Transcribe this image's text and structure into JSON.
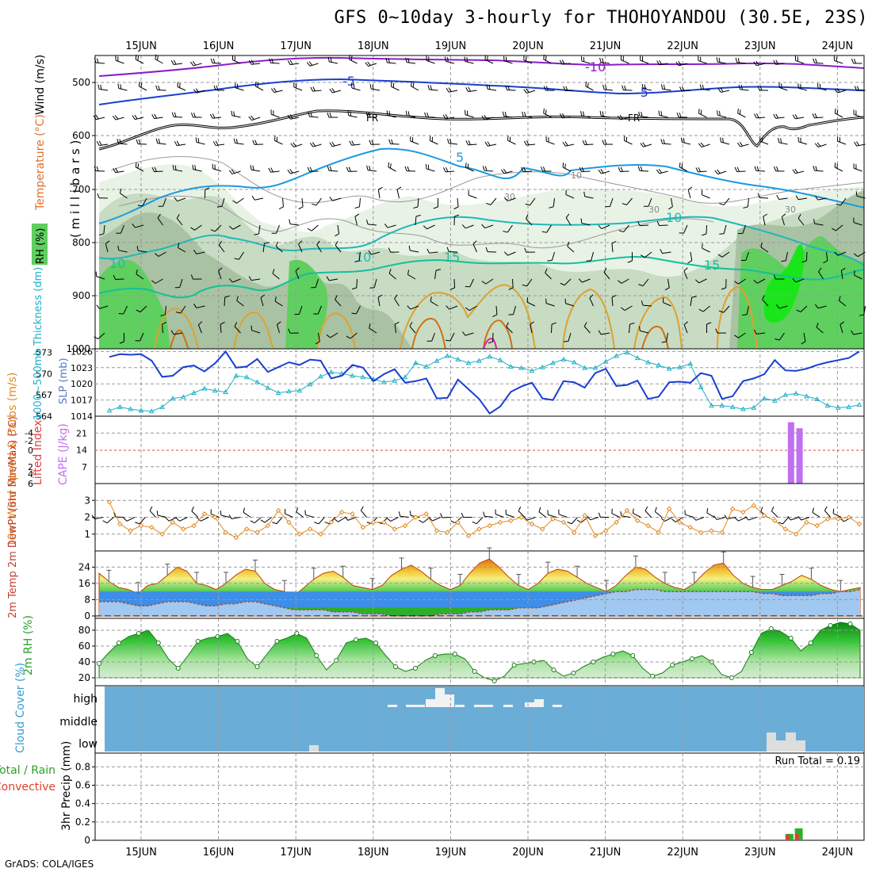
{
  "title": "GFS 0~10day 3-hourly for THOHOYANDOU (30.5E, 23S)",
  "footer": "GrADS: COLA/IGES",
  "days": [
    "15JUN",
    "16JUN",
    "17JUN",
    "18JUN",
    "19JUN",
    "20JUN",
    "21JUN",
    "22JUN",
    "23JUN",
    "24JUN"
  ],
  "colors": {
    "blue": "#1a3fd0",
    "cyan": "#20b0c8",
    "orange": "#e08a20",
    "purple": "#c070f0",
    "green": "#3dc93d",
    "sky": "#6aaed8",
    "grid": "#999999"
  },
  "chart_data": [
    {
      "type": "contour",
      "panel": "upper-air",
      "ylabel_rh": "RH (%)",
      "ylabel_t": "Temperature (°C)",
      "ylabel_w": "Wind (m/s)",
      "ylabel_p": "( m i l l i b a r s )",
      "yticks": [
        "500",
        "600",
        "700",
        "800",
        "900",
        "1000"
      ],
      "contour_labels": [
        "-10",
        "-5",
        "-5",
        "FR",
        "FR",
        "-5",
        "5",
        "10",
        "10",
        "15",
        "15",
        "30",
        "30",
        "10",
        "10",
        "30"
      ]
    },
    {
      "type": "line",
      "panel": "slp-thickness",
      "ylabel_thk": "1000~500mb Thickness (dm)",
      "ylabel_slp": "SLP (mb)",
      "thk_ticks": [
        "573",
        "570",
        "567",
        "564"
      ],
      "slp_ticks": [
        "1026",
        "1023",
        "1020",
        "1017",
        "1014"
      ],
      "thk_range": [
        564,
        573.5
      ],
      "slp_range": [
        1014,
        1026.5
      ],
      "series": [
        {
          "name": "SLP (mb)",
          "values": [
            1025.0,
            1025.5,
            1025.4,
            1025.5,
            1024.3,
            1021.3,
            1021.5,
            1023.1,
            1023.4,
            1022.3,
            1023.8,
            1026.0,
            1023.0,
            1023.2,
            1024.6,
            1022.2,
            1023.1,
            1024.0,
            1023.5,
            1024.5,
            1024.3,
            1021.0,
            1021.5,
            1023.5,
            1023.0,
            1020.5,
            1021.8,
            1022.7,
            1020.2,
            1020.5,
            1021.0,
            1017.3,
            1017.4,
            1020.8,
            1019.0,
            1017.2,
            1014.5,
            1015.8,
            1018.5,
            1019.5,
            1020.2,
            1017.3,
            1017.0,
            1020.5,
            1020.3,
            1019.3,
            1022.0,
            1022.8,
            1019.6,
            1019.8,
            1020.6,
            1017.2,
            1017.6,
            1020.3,
            1020.4,
            1020.2,
            1022.0,
            1021.5,
            1017.2,
            1017.7,
            1020.5,
            1021.0,
            1021.8,
            1024.4,
            1022.5,
            1022.4,
            1022.8,
            1023.5,
            1024.0,
            1024.4,
            1024.8,
            1026.0
          ]
        },
        {
          "name": "Thickness (dm)",
          "values": [
            564.8,
            565.3,
            565.0,
            564.8,
            564.7,
            565.3,
            566.5,
            566.7,
            567.3,
            567.9,
            567.6,
            567.4,
            569.7,
            569.5,
            568.8,
            568.0,
            567.3,
            567.5,
            567.6,
            568.5,
            569.6,
            570.2,
            570.0,
            569.7,
            569.5,
            569.2,
            568.8,
            569.0,
            569.5,
            571.5,
            571.0,
            571.8,
            572.5,
            572.0,
            571.5,
            571.8,
            572.4,
            571.9,
            571.0,
            570.8,
            570.4,
            570.9,
            571.5,
            572.0,
            571.6,
            570.8,
            570.8,
            571.7,
            572.5,
            573.0,
            572.2,
            571.6,
            571.2,
            570.7,
            570.9,
            571.4,
            568.1,
            565.5,
            565.5,
            565.3,
            565.0,
            565.2,
            566.5,
            566.2,
            567.0,
            567.2,
            566.8,
            566.4,
            565.5,
            565.2,
            565.3,
            565.6
          ]
        }
      ]
    },
    {
      "type": "bar",
      "panel": "cape-li",
      "ylabel_li": "Lifted Index",
      "ylabel_cape": "CAPE (J/kg)",
      "li_ticks": [
        "-4",
        "-2",
        "0",
        "2",
        "4",
        "6"
      ],
      "cape_ticks": [
        "21",
        "14",
        "7"
      ],
      "cape_range": [
        0,
        28
      ],
      "bars": [
        {
          "x": 23.4,
          "value": 25.5
        },
        {
          "x": 23.51,
          "value": 23.0
        }
      ]
    },
    {
      "type": "line",
      "panel": "10m-wind",
      "ylabel": "10m Wind Speed & Barbs (m/s)",
      "yticks": [
        "3",
        "2",
        "1"
      ],
      "yrange": [
        0,
        4
      ],
      "values": [
        2.9,
        1.6,
        1.2,
        1.5,
        1.4,
        1.0,
        1.7,
        1.3,
        1.5,
        2.2,
        2.0,
        1.1,
        0.8,
        1.3,
        1.1,
        1.5,
        2.4,
        1.7,
        1.0,
        1.3,
        1.0,
        1.7,
        2.3,
        2.2,
        1.4,
        1.7,
        1.7,
        1.3,
        1.5,
        2.0,
        2.2,
        1.2,
        1.1,
        1.7,
        0.9,
        1.3,
        1.5,
        1.7,
        1.8,
        2.0,
        1.6,
        1.3,
        1.9,
        1.7,
        1.1,
        2.1,
        0.9,
        1.2,
        1.7,
        2.4,
        1.8,
        1.5,
        1.1,
        2.5,
        1.7,
        1.4,
        1.1,
        1.2,
        1.1,
        2.5,
        2.3,
        2.7,
        2.1,
        1.8,
        1.3,
        1.0,
        1.7,
        1.5,
        1.9,
        1.9,
        2.0,
        1.6
      ]
    },
    {
      "type": "area",
      "panel": "2m-temp",
      "ylabel": "2m Temp 2m DewPt (6hr Min/Max) (°C)",
      "yticks": [
        "24",
        "16",
        "8",
        "0"
      ],
      "yrange": [
        0,
        30
      ],
      "temp": [
        21,
        17,
        14,
        13,
        11,
        15,
        16,
        20,
        24,
        22,
        16,
        15,
        13,
        16,
        20,
        23,
        22,
        16,
        13,
        12,
        10,
        14,
        18,
        21,
        22,
        19,
        15,
        14,
        13,
        15,
        20,
        23,
        25,
        22,
        18,
        15,
        13,
        15,
        21,
        26,
        28,
        24,
        19,
        15,
        13,
        16,
        21,
        23,
        22,
        19,
        16,
        14,
        12,
        15,
        20,
        24,
        23,
        19,
        16,
        14,
        13,
        16,
        21,
        25,
        26,
        20,
        16,
        14,
        13,
        13,
        15,
        17,
        20,
        18,
        15,
        13,
        12,
        13,
        14
      ],
      "dewpoint": [
        7,
        7,
        7,
        6,
        5,
        5,
        6,
        7,
        7,
        7,
        6,
        5,
        5,
        6,
        6,
        7,
        7,
        6,
        5,
        4,
        3,
        3,
        3,
        3,
        2,
        2,
        2,
        1,
        1,
        1,
        0,
        0,
        0,
        0,
        0,
        1,
        1,
        1,
        2,
        2,
        3,
        3,
        3,
        4,
        4,
        4,
        5,
        6,
        7,
        8,
        9,
        10,
        11,
        12,
        12,
        13,
        13,
        13,
        12,
        12,
        12,
        12,
        12,
        12,
        12,
        12,
        12,
        12,
        11,
        11,
        10,
        10,
        10,
        10,
        11,
        11,
        12,
        12,
        13
      ]
    },
    {
      "type": "area",
      "panel": "2m-rh",
      "ylabel": "2m RH (%)",
      "yticks": [
        "80",
        "60",
        "40",
        "20"
      ],
      "yrange": [
        10,
        95
      ],
      "values": [
        38,
        52,
        64,
        72,
        76,
        80,
        64,
        44,
        32,
        48,
        66,
        70,
        72,
        76,
        66,
        44,
        34,
        50,
        66,
        70,
        76,
        70,
        48,
        30,
        42,
        64,
        68,
        70,
        64,
        48,
        34,
        28,
        32,
        42,
        48,
        50,
        50,
        44,
        28,
        20,
        16,
        22,
        36,
        38,
        40,
        42,
        30,
        22,
        26,
        34,
        40,
        46,
        50,
        54,
        48,
        32,
        22,
        26,
        36,
        40,
        44,
        48,
        40,
        24,
        20,
        28,
        52,
        76,
        82,
        78,
        70,
        54,
        64,
        80,
        86,
        90,
        88,
        80
      ]
    },
    {
      "type": "bar",
      "panel": "cloud-cover",
      "ylabel": "Cloud Cover (%)",
      "levels": [
        "high",
        "middle",
        "low"
      ]
    },
    {
      "type": "bar",
      "panel": "precip",
      "ylabel_left": "Total / Rain",
      "ylabel_conv": "Convective",
      "ylabel": "3hr Precip (mm)",
      "yticks": [
        "0.8",
        "0.6",
        "0.4",
        "0.2",
        "0"
      ],
      "yrange": [
        0,
        0.95
      ],
      "run_total": "Run Total = 0.19",
      "bars": [
        {
          "x": 23.38,
          "total": 0.07,
          "conv": 0.06
        },
        {
          "x": 23.5,
          "total": 0.13,
          "conv": 0.07
        }
      ]
    }
  ]
}
